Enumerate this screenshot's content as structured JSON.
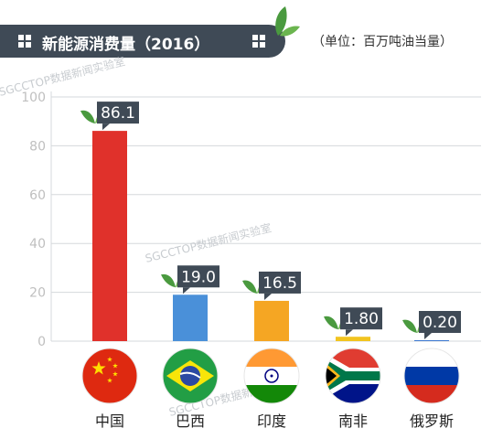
{
  "header": {
    "title": "新能源消费量（2016）",
    "unit": "（单位：百万吨油当量）"
  },
  "watermark": "SGCCTOP数据新闻实验室",
  "colors": {
    "title_bg": "#3f4a56",
    "label_bg": "#3f4a56",
    "grid": "#d5d8dc",
    "leaf": "#3e8e3a"
  },
  "chart_data": {
    "type": "bar",
    "categories": [
      "中国",
      "巴西",
      "印度",
      "南非",
      "俄罗斯"
    ],
    "values": [
      86.1,
      19.0,
      16.5,
      1.8,
      0.2
    ],
    "data_labels": [
      "86.1",
      "19.0",
      "16.5",
      "1.80",
      "0.20"
    ],
    "bar_colors": [
      "#e0312b",
      "#4a90d9",
      "#f5a623",
      "#f2c41f",
      "#3b78d0"
    ],
    "ylim": [
      0,
      100
    ],
    "yticks": [
      "0",
      "20",
      "40",
      "60",
      "80",
      "100"
    ],
    "grid": true,
    "flag_icons": [
      "china-flag-icon",
      "brazil-flag-icon",
      "india-flag-icon",
      "south-africa-flag-icon",
      "russia-flag-icon"
    ]
  }
}
